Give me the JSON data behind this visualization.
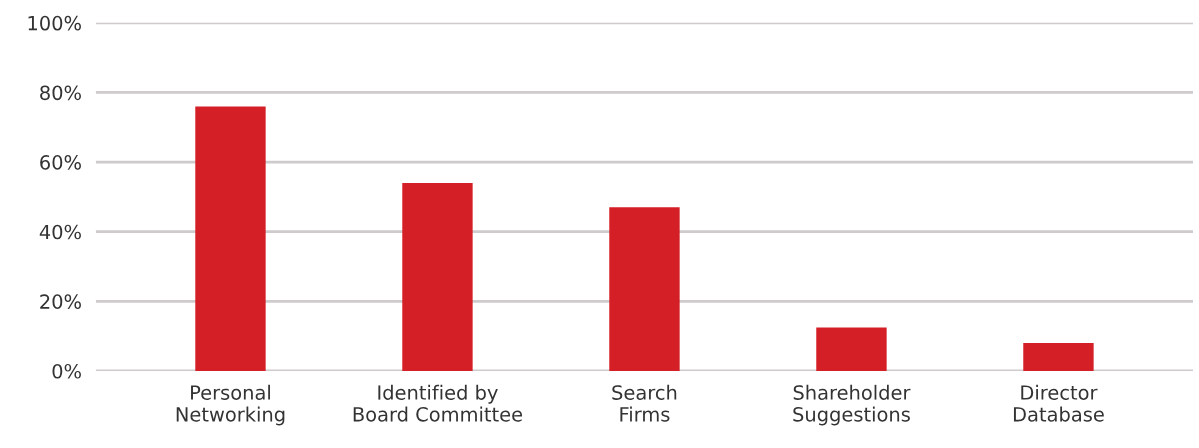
{
  "chart_data": {
    "type": "bar",
    "categories": [
      "Personal\nNetworking",
      "Identified by\nBoard Committee",
      "Search\nFirms",
      "Shareholder\nSuggestions",
      "Director\nDatabase"
    ],
    "values": [
      76,
      54,
      47,
      12.5,
      8
    ],
    "color": "#d41f26",
    "ylim": [
      0,
      100
    ],
    "yticks": [
      {
        "value": 0,
        "label": "0%"
      },
      {
        "value": 20,
        "label": "20%"
      },
      {
        "value": 40,
        "label": "40%"
      },
      {
        "value": 60,
        "label": "60%"
      },
      {
        "value": 80,
        "label": "80%"
      },
      {
        "value": 100,
        "label": "100%"
      }
    ],
    "grid": "y"
  }
}
